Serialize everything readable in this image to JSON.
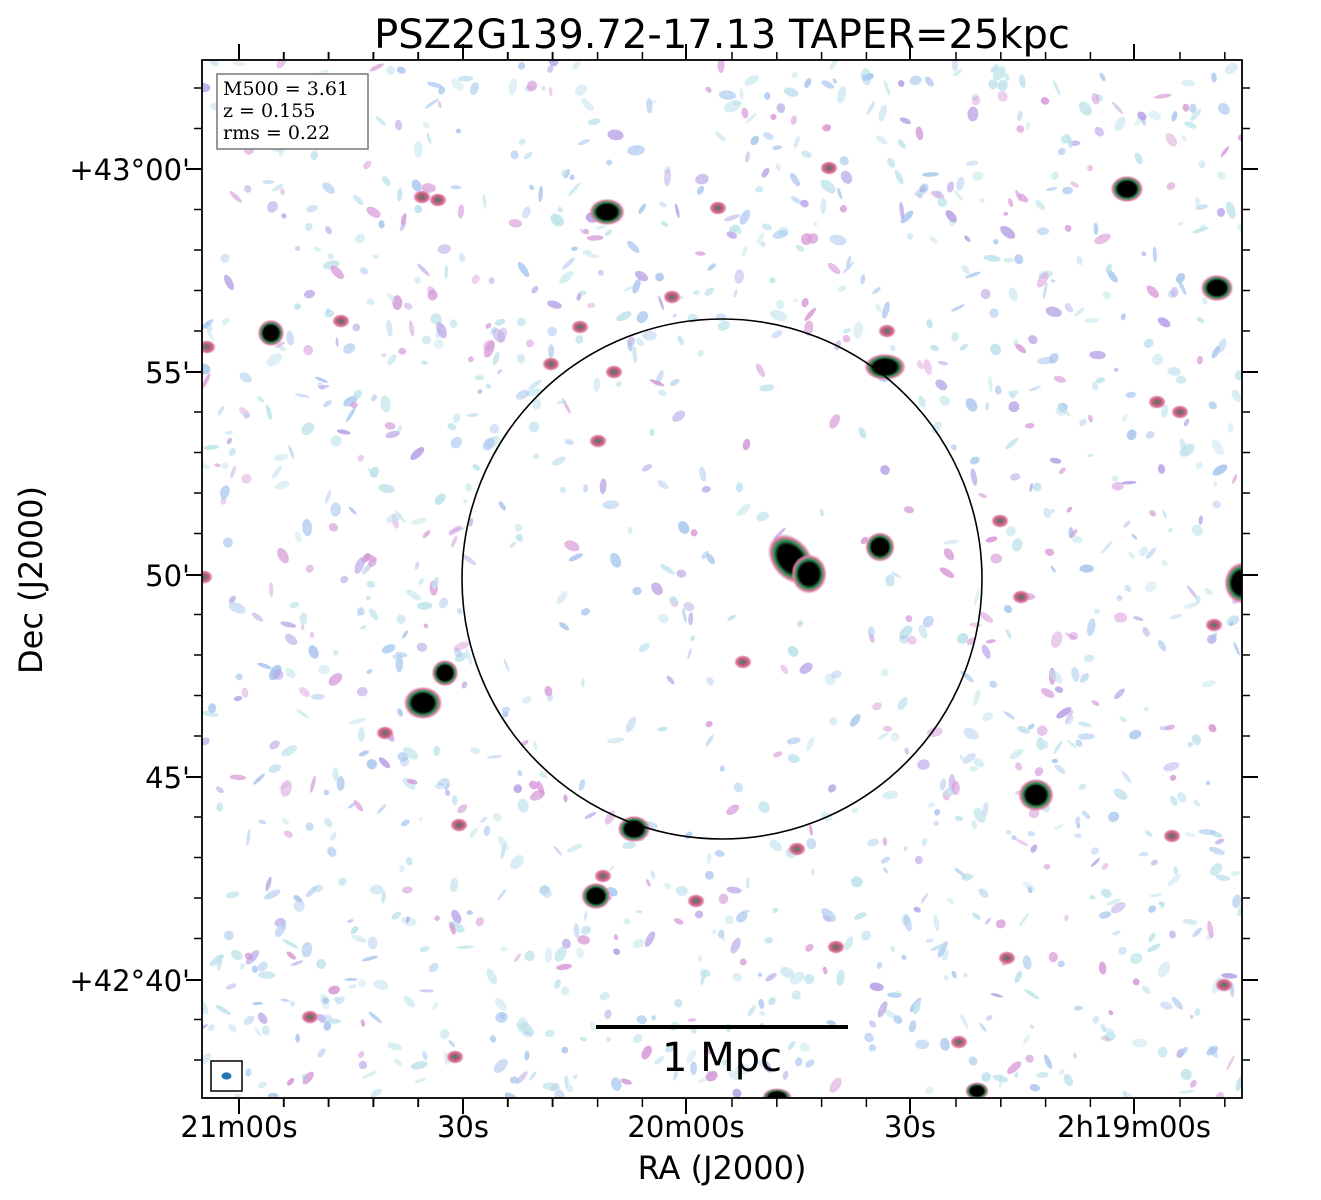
{
  "figure": {
    "title": "PSZ2G139.72-17.13 TAPER=25kpc",
    "xlabel": "RA (J2000)",
    "ylabel": "Dec (J2000)",
    "ra_ticks": [
      "21m00s",
      "30s",
      "20m00s",
      "30s",
      "2h19m00s"
    ],
    "dec_ticks": [
      "+43°00'",
      "55'",
      "50'",
      "45'",
      "+42°40'"
    ],
    "info": {
      "m500": "M500 = 3.61",
      "z": "z = 0.155",
      "rms": "rms = 0.22"
    },
    "scale_bar_label": "1 Mpc",
    "colors": {
      "noise_light": "#bfe3ec",
      "noise_blue": "#a9c7ee",
      "noise_purple": "#b7a2e6",
      "noise_magenta": "#d79ad8",
      "source_pink": "#e07a9a",
      "source_green": "#2f8f57",
      "source_core": "#000000",
      "beam": "#1f77b4"
    }
  }
}
